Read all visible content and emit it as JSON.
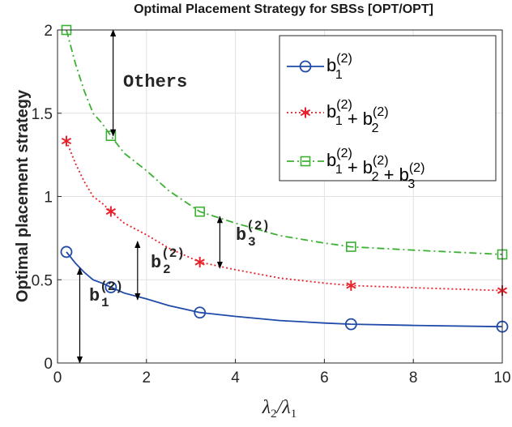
{
  "chart_data": {
    "type": "line",
    "title": "Optimal Placement Strategy for SBSs [OPT/OPT]",
    "ylabel": "Optimal placement strategy",
    "xlabel": {
      "lambda": "λ",
      "num_sub": "2",
      "den_sub": "1"
    },
    "xlim": [
      0,
      10
    ],
    "ylim": [
      0,
      2
    ],
    "xticks": [
      0,
      2,
      4,
      6,
      8,
      10
    ],
    "yticks": [
      0,
      0.5,
      1,
      1.5,
      2
    ],
    "xtick_labels": [
      "0",
      "2",
      "4",
      "6",
      "8",
      "10"
    ],
    "ytick_labels": [
      "0",
      "0.5",
      "1",
      "1.5",
      "2"
    ],
    "grid": true,
    "legend_position": "top-right",
    "series": [
      {
        "key": "s1",
        "marker": "circle",
        "line": "solid",
        "color": "#1f4aa8",
        "legend": [
          {
            "t": "b",
            "sup": "(2)",
            "sub": "1"
          }
        ],
        "x": [
          0.2,
          1.2,
          3.2,
          6.6,
          10
        ],
        "y": [
          0.667,
          0.455,
          0.303,
          0.233,
          0.218
        ],
        "curve": [
          [
            0.2,
            0.667
          ],
          [
            0.4,
            0.6
          ],
          [
            0.6,
            0.545
          ],
          [
            0.8,
            0.5
          ],
          [
            1.0,
            0.48
          ],
          [
            1.2,
            0.455
          ],
          [
            1.5,
            0.42
          ],
          [
            2.0,
            0.385
          ],
          [
            2.5,
            0.345
          ],
          [
            3.2,
            0.303
          ],
          [
            4.0,
            0.28
          ],
          [
            5.0,
            0.255
          ],
          [
            6.0,
            0.24
          ],
          [
            6.6,
            0.233
          ],
          [
            8.0,
            0.226
          ],
          [
            10,
            0.218
          ]
        ]
      },
      {
        "key": "s2",
        "marker": "asterisk",
        "line": "dotted",
        "color": "#e8202a",
        "legend": [
          {
            "t": "b",
            "sup": "(2)",
            "sub": "1"
          },
          {
            "t": " + "
          },
          {
            "t": "b",
            "sup": "(2)",
            "sub": "2"
          }
        ],
        "x": [
          0.2,
          1.2,
          3.2,
          6.6,
          10
        ],
        "y": [
          1.333,
          0.91,
          0.606,
          0.465,
          0.435
        ],
        "curve": [
          [
            0.2,
            1.333
          ],
          [
            0.4,
            1.2
          ],
          [
            0.6,
            1.09
          ],
          [
            0.8,
            1.0
          ],
          [
            1.0,
            0.96
          ],
          [
            1.2,
            0.91
          ],
          [
            1.5,
            0.84
          ],
          [
            2.0,
            0.77
          ],
          [
            2.5,
            0.69
          ],
          [
            3.2,
            0.606
          ],
          [
            4.0,
            0.56
          ],
          [
            5.0,
            0.51
          ],
          [
            6.0,
            0.48
          ],
          [
            6.6,
            0.465
          ],
          [
            8.0,
            0.452
          ],
          [
            10,
            0.435
          ]
        ]
      },
      {
        "key": "s3",
        "marker": "square",
        "line": "dashdot",
        "color": "#3cb033",
        "legend": [
          {
            "t": "b",
            "sup": "(2)",
            "sub": "1"
          },
          {
            "t": " + "
          },
          {
            "t": "b",
            "sup": "(2)",
            "sub": "2"
          },
          {
            "t": " + "
          },
          {
            "t": "b",
            "sup": "(2)",
            "sub": "3"
          }
        ],
        "x": [
          0.2,
          1.2,
          3.2,
          6.6,
          10
        ],
        "y": [
          2.0,
          1.364,
          0.909,
          0.698,
          0.652
        ],
        "curve": [
          [
            0.2,
            2.0
          ],
          [
            0.4,
            1.8
          ],
          [
            0.6,
            1.635
          ],
          [
            0.8,
            1.5
          ],
          [
            1.0,
            1.44
          ],
          [
            1.2,
            1.364
          ],
          [
            1.5,
            1.26
          ],
          [
            2.0,
            1.155
          ],
          [
            2.5,
            1.035
          ],
          [
            3.2,
            0.909
          ],
          [
            4.0,
            0.84
          ],
          [
            5.0,
            0.765
          ],
          [
            6.0,
            0.72
          ],
          [
            6.6,
            0.698
          ],
          [
            8.0,
            0.678
          ],
          [
            10,
            0.652
          ]
        ]
      }
    ],
    "annotations": [
      {
        "key": "others",
        "text": "Others",
        "arrow_x": 1.25,
        "arrow_y": [
          1.364,
          2.0
        ]
      },
      {
        "key": "b2_3",
        "base": "b",
        "sup": "(2)",
        "sub": "3",
        "arrow_x": 3.65,
        "arrow_y": [
          0.57,
          0.88
        ]
      },
      {
        "key": "b2_2",
        "base": "b",
        "sup": "(2)",
        "sub": "2",
        "arrow_x": 1.8,
        "arrow_y": [
          0.38,
          0.73
        ]
      },
      {
        "key": "b2_1",
        "base": "b",
        "sup": "(2)",
        "sub": "1",
        "arrow_x": 0.5,
        "arrow_y": [
          0.0,
          0.57
        ]
      }
    ]
  }
}
